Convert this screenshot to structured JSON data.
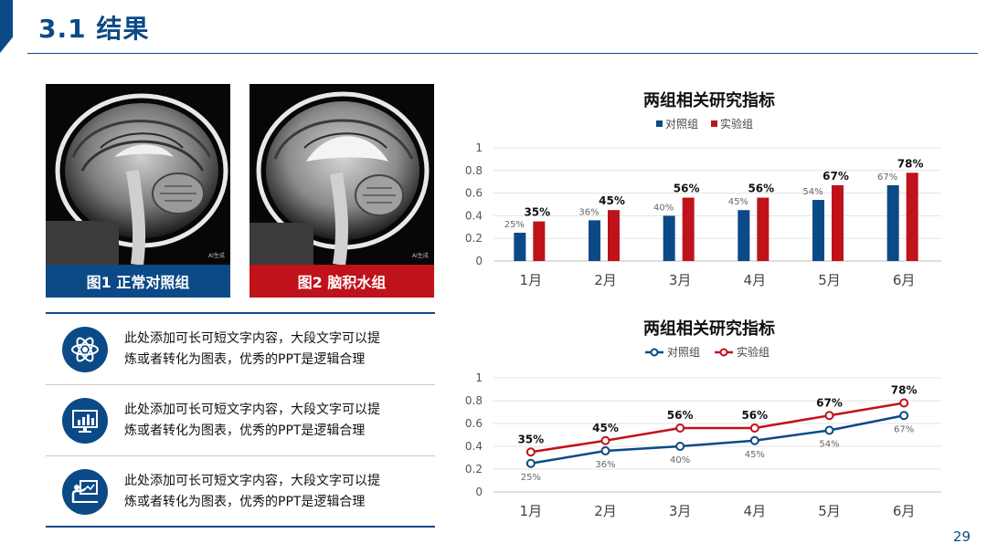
{
  "header": {
    "title": "3.1 结果"
  },
  "figures": [
    {
      "caption": "图1 正常对照组",
      "watermark": "AI生成"
    },
    {
      "caption": "图2 脑积水组",
      "watermark": "AI生成"
    }
  ],
  "features": [
    {
      "icon": "atom-icon",
      "line1": "此处添加可长可短文字内容，大段文字可以提",
      "line2": "炼或者转化为图表，优秀的PPT是逻辑合理"
    },
    {
      "icon": "monitor-chart-icon",
      "line1": "此处添加可长可短文字内容，大段文字可以提",
      "line2": "炼或者转化为图表，优秀的PPT是逻辑合理"
    },
    {
      "icon": "presenter-icon",
      "line1": "此处添加可长可短文字内容，大段文字可以提",
      "line2": "炼或者转化为图表，优秀的PPT是逻辑合理"
    }
  ],
  "page_number": "29",
  "colors": {
    "control": "#0b4a86",
    "experiment": "#c0121b"
  },
  "chart_data": [
    {
      "type": "bar",
      "title": "两组相关研究指标",
      "categories": [
        "1月",
        "2月",
        "3月",
        "4月",
        "5月",
        "6月"
      ],
      "series": [
        {
          "name": "对照组",
          "values": [
            0.25,
            0.36,
            0.4,
            0.45,
            0.54,
            0.67
          ],
          "labels": [
            "25%",
            "36%",
            "40%",
            "45%",
            "54%",
            "67%"
          ]
        },
        {
          "name": "实验组",
          "values": [
            0.35,
            0.45,
            0.56,
            0.56,
            0.67,
            0.78
          ],
          "labels": [
            "35%",
            "45%",
            "56%",
            "56%",
            "67%",
            "78%"
          ]
        }
      ],
      "ylim": [
        0,
        1
      ],
      "yticks": [
        "0",
        "0.2",
        "0.4",
        "0.6",
        "0.8",
        "1"
      ],
      "legend": "top"
    },
    {
      "type": "line",
      "title": "两组相关研究指标",
      "categories": [
        "1月",
        "2月",
        "3月",
        "4月",
        "5月",
        "6月"
      ],
      "series": [
        {
          "name": "对照组",
          "values": [
            0.25,
            0.36,
            0.4,
            0.45,
            0.54,
            0.67
          ],
          "labels": [
            "25%",
            "36%",
            "40%",
            "45%",
            "54%",
            "67%"
          ]
        },
        {
          "name": "实验组",
          "values": [
            0.35,
            0.45,
            0.56,
            0.56,
            0.67,
            0.78
          ],
          "labels": [
            "35%",
            "45%",
            "56%",
            "56%",
            "67%",
            "78%"
          ]
        }
      ],
      "ylim": [
        0,
        1
      ],
      "yticks": [
        "0",
        "0.2",
        "0.4",
        "0.6",
        "0.8",
        "1"
      ],
      "legend": "top"
    }
  ]
}
